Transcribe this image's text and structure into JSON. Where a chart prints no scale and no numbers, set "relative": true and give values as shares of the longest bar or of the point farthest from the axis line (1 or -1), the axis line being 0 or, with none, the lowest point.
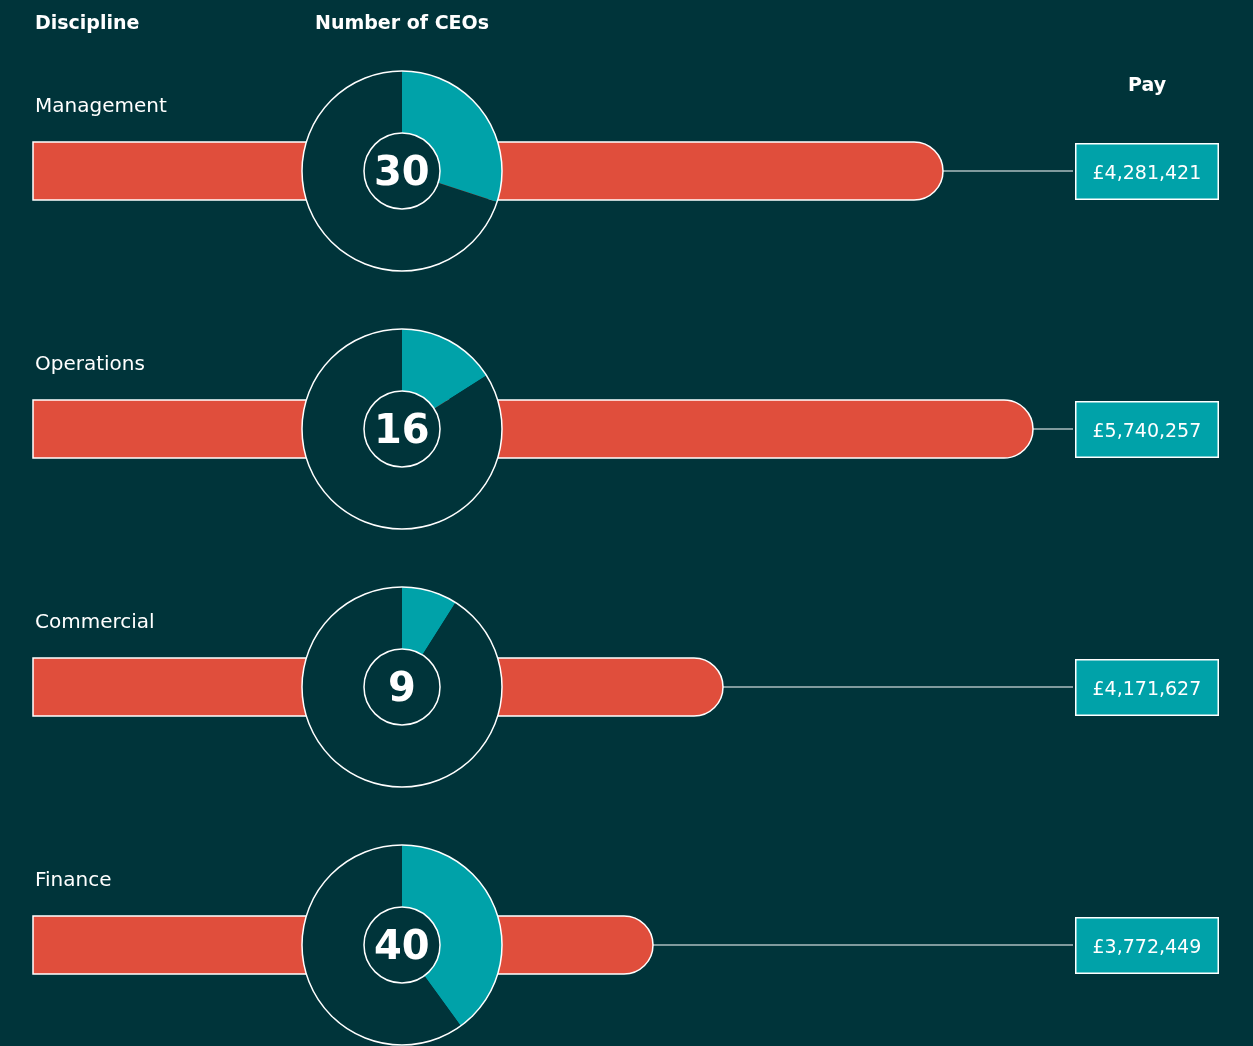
{
  "chart_data": [
    {
      "type": "bar",
      "orientation": "horizontal",
      "relative": true,
      "ylabel": "Discipline",
      "categories": [
        "Management",
        "Operations",
        "Commercial",
        "Finance"
      ],
      "values": [
        0.91,
        1.0,
        0.69,
        0.62
      ],
      "color": "#e04e3c",
      "annotations": [
        "Pay",
        "£4,281,421",
        "£5,740,257",
        "£4,171,627",
        "£3,772,449"
      ]
    },
    {
      "type": "donut",
      "title": "Number of CEOs",
      "categories": [
        null,
        null
      ],
      "values": [
        30,
        70
      ],
      "colors": [
        "#00a2a9",
        "#00343a"
      ],
      "annotations": [
        "30"
      ]
    },
    {
      "type": "donut",
      "categories": [
        null,
        null
      ],
      "values": [
        16,
        84
      ],
      "colors": [
        "#00a2a9",
        "#00343a"
      ],
      "annotations": [
        "16"
      ]
    },
    {
      "type": "donut",
      "categories": [
        null,
        null
      ],
      "values": [
        9,
        91
      ],
      "colors": [
        "#00a2a9",
        "#00343a"
      ],
      "annotations": [
        "9"
      ]
    },
    {
      "type": "donut",
      "categories": [
        null,
        null
      ],
      "values": [
        40,
        60
      ],
      "colors": [
        "#00a2a9",
        "#00343a"
      ],
      "annotations": [
        "40"
      ]
    }
  ]
}
